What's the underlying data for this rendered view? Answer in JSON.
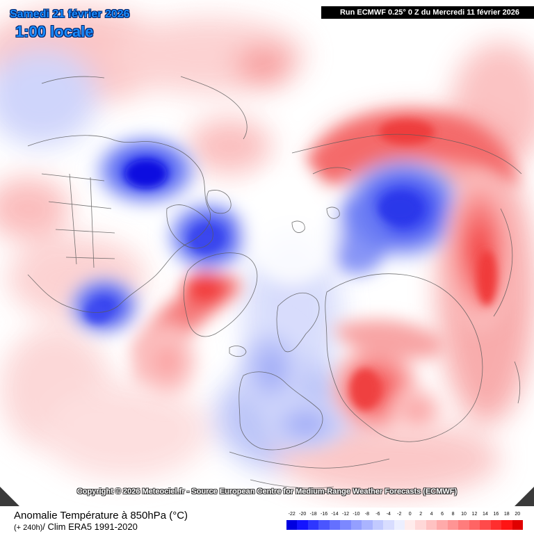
{
  "header": {
    "date_line": "Samedi 21 février 2026",
    "time_line": "1:00 locale",
    "run_info": "Run ECMWF 0.25° 0 Z du Mercredi 11 février 2026"
  },
  "copyright": "Copyright © 2026 Meteociel.fr - Source European Centre for Medium-Range Weather Forecasts (ECMWF)",
  "footer": {
    "title": "Anomalie Température à 850hPa (°C)",
    "lead_time": "(+ 240h)",
    "climatology": "/ Clim ERA5 1991-2020"
  },
  "legend": {
    "labels": [
      "-22",
      "-20",
      "-18",
      "-16",
      "-14",
      "-12",
      "-10",
      "-8",
      "-6",
      "-4",
      "-2",
      "0",
      "2",
      "4",
      "6",
      "8",
      "10",
      "12",
      "14",
      "16",
      "18",
      "20"
    ],
    "colors": [
      "#0000e0",
      "#1414ff",
      "#2e36ff",
      "#4a55ff",
      "#6470ff",
      "#7c88ff",
      "#949fff",
      "#aab4ff",
      "#c2caff",
      "#d8ddff",
      "#ecefff",
      "#ffecec",
      "#ffd8d8",
      "#ffc2c2",
      "#ffaaaa",
      "#ff9494",
      "#ff7c7c",
      "#ff6464",
      "#ff4a4a",
      "#ff2e2e",
      "#ff1414",
      "#e00000"
    ]
  },
  "map": {
    "projection": "polar stereographic (North Pole)",
    "warm_color": "#ff5a5a",
    "cold_color": "#2c3ff0"
  }
}
